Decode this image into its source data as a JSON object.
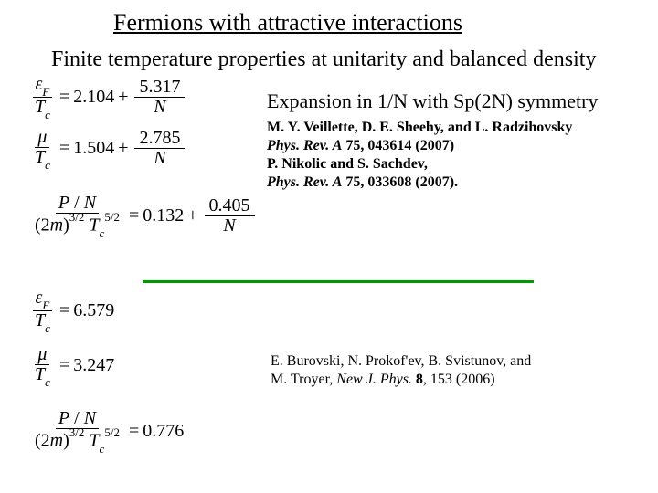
{
  "title": "Fermions with attractive interactions",
  "subtitle": "Finite temperature properties at unitarity and balanced density",
  "expansion": {
    "prefix": "Expansion in 1/",
    "N1": "N",
    "mid": " with Sp(2",
    "N2": "N",
    "suffix": ") symmetry"
  },
  "refs_top": {
    "l1": "M. Y. Veillette, D. E. Sheehy, and L. Radzihovsky",
    "l2_journal": "Phys. Rev. A",
    "l2_vol": "75",
    "l2_rest": ", 043614 (2007)",
    "l3": "P. Nikolic and S. Sachdev,",
    "l4_journal": "Phys. Rev. A",
    "l4_vol": "75",
    "l4_rest": ", 033608 (2007)."
  },
  "refs_bottom": {
    "l1": "E. Burovski, N. Prokof'ev, B. Svistunov, and",
    "l2_pre": "M. Troyer, ",
    "l2_journal": "New J. Phys.",
    "l2_vol": "8",
    "l2_rest": ", 153 (2006)"
  },
  "eq": {
    "eF": "ε",
    "F": "F",
    "Tc": "T",
    "c": "c",
    "mu": "μ",
    "P": "P",
    "N": "N",
    "twom": "2",
    "m": "m",
    "exp32": "3/2",
    "exp52": "5/2",
    "e1_a": "2.104",
    "e1_b": "5.317",
    "e2_a": "1.504",
    "e2_b": "2.785",
    "e3_a": "0.132",
    "e3_b": "0.405",
    "e4_a": "6.579",
    "e5_a": "3.247",
    "e6_a": "0.776"
  },
  "colors": {
    "divider": "#009900",
    "text": "#000000",
    "bg": "#ffffff"
  }
}
